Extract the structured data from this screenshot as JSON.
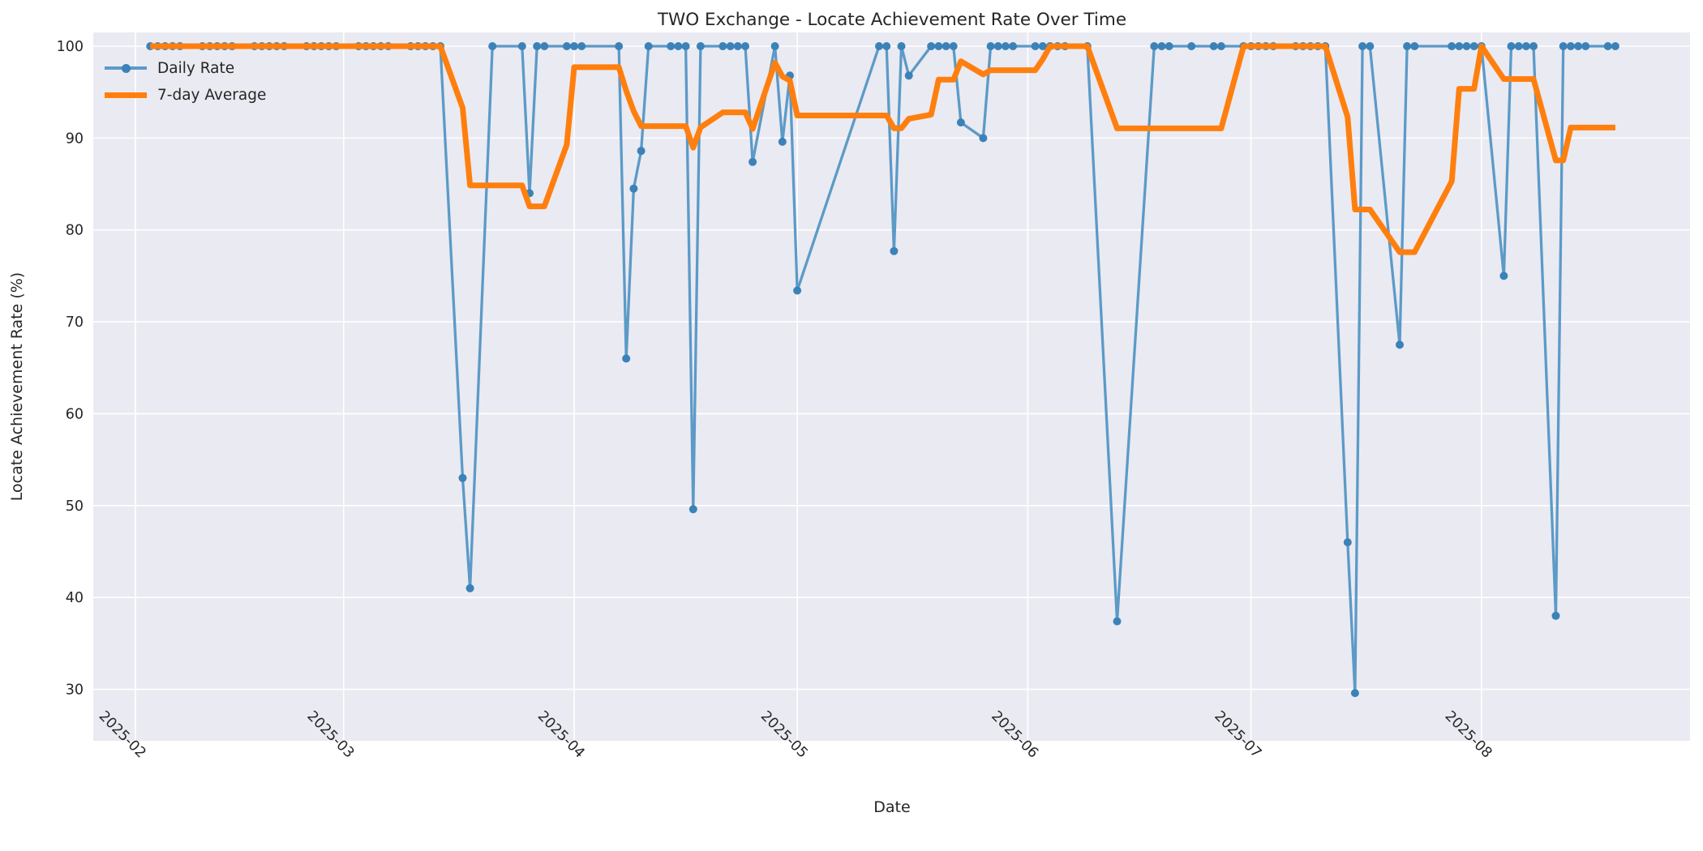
{
  "title": "TWO Exchange - Locate Achievement Rate Over Time",
  "axes": {
    "xlabel": "Date",
    "ylabel": "Locate Achievement Rate (%)"
  },
  "legend": {
    "position": "upper-left",
    "items": [
      {
        "label": "Daily Rate",
        "color": "#5c9ac7",
        "marker_color": "#3b82b8",
        "style": "line-with-dot"
      },
      {
        "label": "7-day Average",
        "color": "#ff7f0e",
        "style": "thick-line"
      }
    ]
  },
  "colors": {
    "figure_background": "#ffffff",
    "plot_background": "#eaeaf2",
    "grid": "#ffffff",
    "daily_line": "#5c9ac7",
    "daily_marker": "#3b82b8",
    "average_line": "#ff7f0e",
    "text": "#262626"
  },
  "chart_data": {
    "type": "line",
    "title": "TWO Exchange - Locate Achievement Rate Over Time",
    "xlabel": "Date",
    "ylabel": "Locate Achievement Rate (%)",
    "grid": true,
    "legend_position": "upper left",
    "xlim": [
      "2025-01-26T08:00:00Z",
      "2025-08-29T01:00:00Z"
    ],
    "ylim": [
      24.4,
      101.5
    ],
    "y_ticks": [
      30,
      40,
      50,
      60,
      70,
      80,
      90,
      100
    ],
    "x_ticks": [
      {
        "label": "2025-02",
        "date": "2025-02-01"
      },
      {
        "label": "2025-03",
        "date": "2025-03-01"
      },
      {
        "label": "2025-04",
        "date": "2025-04-01"
      },
      {
        "label": "2025-05",
        "date": "2025-05-01"
      },
      {
        "label": "2025-06",
        "date": "2025-06-01"
      },
      {
        "label": "2025-07",
        "date": "2025-07-01"
      },
      {
        "label": "2025-08",
        "date": "2025-08-01"
      }
    ],
    "series": [
      {
        "name": "Daily Rate",
        "color": "#5c9ac7",
        "marker_color": "#3b82b8",
        "line_width": 3.3,
        "marker_radius": 5,
        "points": [
          [
            "2025-02-03",
            100
          ],
          [
            "2025-02-04",
            100
          ],
          [
            "2025-02-05",
            100
          ],
          [
            "2025-02-06",
            100
          ],
          [
            "2025-02-07",
            100
          ],
          [
            "2025-02-10",
            100
          ],
          [
            "2025-02-11",
            100
          ],
          [
            "2025-02-12",
            100
          ],
          [
            "2025-02-13",
            100
          ],
          [
            "2025-02-14",
            100
          ],
          [
            "2025-02-17",
            100
          ],
          [
            "2025-02-18",
            100
          ],
          [
            "2025-02-19",
            100
          ],
          [
            "2025-02-20",
            100
          ],
          [
            "2025-02-21",
            100
          ],
          [
            "2025-02-24",
            100
          ],
          [
            "2025-02-25",
            100
          ],
          [
            "2025-02-26",
            100
          ],
          [
            "2025-02-27",
            100
          ],
          [
            "2025-02-28",
            100
          ],
          [
            "2025-03-03",
            100
          ],
          [
            "2025-03-04",
            100
          ],
          [
            "2025-03-05",
            100
          ],
          [
            "2025-03-06",
            100
          ],
          [
            "2025-03-07",
            100
          ],
          [
            "2025-03-10",
            100
          ],
          [
            "2025-03-11",
            100
          ],
          [
            "2025-03-12",
            100
          ],
          [
            "2025-03-13",
            100
          ],
          [
            "2025-03-14",
            100
          ],
          [
            "2025-03-17",
            53.0
          ],
          [
            "2025-03-18",
            41.0
          ],
          [
            "2025-03-21",
            100
          ],
          [
            "2025-03-25",
            100
          ],
          [
            "2025-03-26",
            84.0
          ],
          [
            "2025-03-27",
            100
          ],
          [
            "2025-03-28",
            100
          ],
          [
            "2025-03-31",
            100
          ],
          [
            "2025-04-01",
            100
          ],
          [
            "2025-04-02",
            100
          ],
          [
            "2025-04-07",
            100
          ],
          [
            "2025-04-08",
            66.0
          ],
          [
            "2025-04-09",
            84.5
          ],
          [
            "2025-04-10",
            88.6
          ],
          [
            "2025-04-11",
            100
          ],
          [
            "2025-04-14",
            100
          ],
          [
            "2025-04-15",
            100
          ],
          [
            "2025-04-16",
            100
          ],
          [
            "2025-04-17",
            49.6
          ],
          [
            "2025-04-18",
            100
          ],
          [
            "2025-04-21",
            100
          ],
          [
            "2025-04-22",
            100
          ],
          [
            "2025-04-23",
            100
          ],
          [
            "2025-04-24",
            100
          ],
          [
            "2025-04-25",
            87.4
          ],
          [
            "2025-04-28",
            100
          ],
          [
            "2025-04-29",
            89.6
          ],
          [
            "2025-04-30",
            96.8
          ],
          [
            "2025-05-01",
            73.4
          ],
          [
            "2025-05-12",
            100
          ],
          [
            "2025-05-13",
            100
          ],
          [
            "2025-05-14",
            77.7
          ],
          [
            "2025-05-15",
            100
          ],
          [
            "2025-05-16",
            96.8
          ],
          [
            "2025-05-19",
            100
          ],
          [
            "2025-05-20",
            100
          ],
          [
            "2025-05-21",
            100
          ],
          [
            "2025-05-22",
            100
          ],
          [
            "2025-05-23",
            91.7
          ],
          [
            "2025-05-26",
            90.0
          ],
          [
            "2025-05-27",
            100
          ],
          [
            "2025-05-28",
            100
          ],
          [
            "2025-05-29",
            100
          ],
          [
            "2025-05-30",
            100
          ],
          [
            "2025-06-02",
            100
          ],
          [
            "2025-06-03",
            100
          ],
          [
            "2025-06-04",
            100
          ],
          [
            "2025-06-05",
            100
          ],
          [
            "2025-06-06",
            100
          ],
          [
            "2025-06-09",
            100
          ],
          [
            "2025-06-13",
            37.4
          ],
          [
            "2025-06-18",
            100
          ],
          [
            "2025-06-19",
            100
          ],
          [
            "2025-06-20",
            100
          ],
          [
            "2025-06-23",
            100
          ],
          [
            "2025-06-26",
            100
          ],
          [
            "2025-06-27",
            100
          ],
          [
            "2025-06-30",
            100
          ],
          [
            "2025-07-01",
            100
          ],
          [
            "2025-07-02",
            100
          ],
          [
            "2025-07-03",
            100
          ],
          [
            "2025-07-04",
            100
          ],
          [
            "2025-07-07",
            100
          ],
          [
            "2025-07-08",
            100
          ],
          [
            "2025-07-09",
            100
          ],
          [
            "2025-07-10",
            100
          ],
          [
            "2025-07-11",
            100
          ],
          [
            "2025-07-14",
            46.0
          ],
          [
            "2025-07-15",
            29.6
          ],
          [
            "2025-07-16",
            100
          ],
          [
            "2025-07-17",
            100
          ],
          [
            "2025-07-21",
            67.5
          ],
          [
            "2025-07-22",
            100
          ],
          [
            "2025-07-23",
            100
          ],
          [
            "2025-07-28",
            100
          ],
          [
            "2025-07-29",
            100
          ],
          [
            "2025-07-30",
            100
          ],
          [
            "2025-07-31",
            100
          ],
          [
            "2025-08-01",
            100
          ],
          [
            "2025-08-04",
            75.0
          ],
          [
            "2025-08-05",
            100
          ],
          [
            "2025-08-06",
            100
          ],
          [
            "2025-08-07",
            100
          ],
          [
            "2025-08-08",
            100
          ],
          [
            "2025-08-11",
            38.0
          ],
          [
            "2025-08-12",
            100
          ],
          [
            "2025-08-13",
            100
          ],
          [
            "2025-08-14",
            100
          ],
          [
            "2025-08-15",
            100
          ],
          [
            "2025-08-18",
            100
          ],
          [
            "2025-08-19",
            100
          ]
        ]
      },
      {
        "name": "7-day Average",
        "color": "#ff7f0e",
        "line_width": 7,
        "derived_from": "Daily Rate",
        "derivation": "rolling mean of last 7 data points (min_periods=1)",
        "window": 7
      }
    ]
  }
}
